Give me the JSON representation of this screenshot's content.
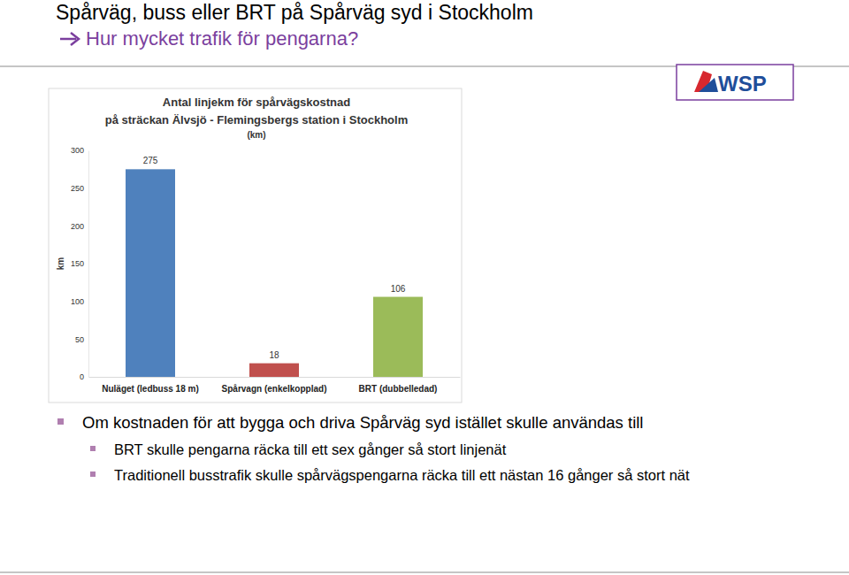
{
  "slide": {
    "title": "Spårväg, buss eller BRT på Spårväg syd i Stockholm",
    "subtitle": "Hur mycket trafik för pengarna?",
    "logo": "WSP",
    "bullets": [
      {
        "text": "Om kostnaden för att bygga och driva Spårväg syd istället skulle användas till",
        "sub": [
          "BRT skulle pengarna räcka till ett sex gånger så stort linjenät",
          "Traditionell busstrafik skulle spårvägspengarna räcka till ett nästan 16 gånger så stort nät"
        ]
      }
    ]
  },
  "chart_data": {
    "type": "bar",
    "title": "Antal linjekm för spårvägskostnad\npå sträckan Älvsjö - Flemingsbergs station i Stockholm",
    "subtitle": "(km)",
    "y_label": "km",
    "categories": [
      "Nuläget (ledbuss 18 m)",
      "Spårvagn (enkelkopplad)",
      "BRT (dubbelledad)"
    ],
    "values": [
      275,
      18,
      106
    ],
    "colors": [
      "#4f81bd",
      "#c0504d",
      "#9bbb59"
    ],
    "ylim": [
      0,
      300
    ],
    "yticks": [
      0,
      50,
      100,
      150,
      200,
      250,
      300
    ],
    "grid": false,
    "data_labels": true
  }
}
